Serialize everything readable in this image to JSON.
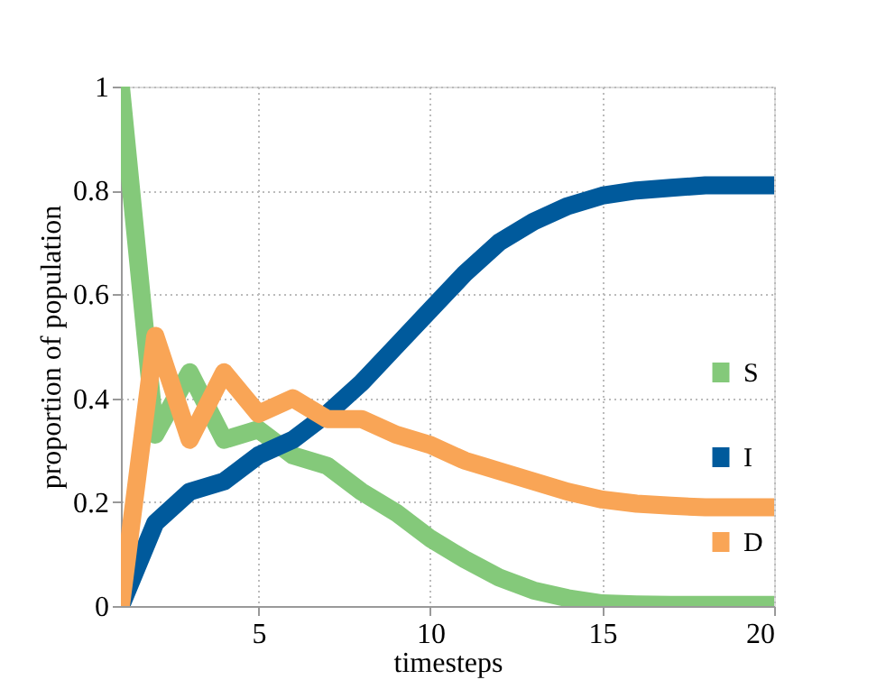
{
  "chart_data": {
    "type": "line",
    "xlabel": "timesteps",
    "ylabel": "proportion of population",
    "x": [
      1,
      2,
      3,
      4,
      5,
      6,
      7,
      8,
      9,
      10,
      11,
      12,
      13,
      14,
      15,
      16,
      17,
      18,
      19,
      20
    ],
    "series": [
      {
        "name": "S",
        "color": "#84c97a",
        "values": [
          1,
          0.33,
          0.45,
          0.32,
          0.34,
          0.29,
          0.27,
          0.22,
          0.18,
          0.13,
          0.09,
          0.055,
          0.03,
          0.015,
          0.005,
          0.003,
          0.002,
          0.002,
          0.002,
          0.002
        ]
      },
      {
        "name": "I",
        "color": "#005a9c",
        "values": [
          0,
          0.16,
          0.22,
          0.24,
          0.29,
          0.32,
          0.37,
          0.43,
          0.5,
          0.57,
          0.64,
          0.7,
          0.74,
          0.77,
          0.79,
          0.8,
          0.805,
          0.81,
          0.81,
          0.81
        ]
      },
      {
        "name": "D",
        "color": "#f9a556",
        "values": [
          0,
          0.52,
          0.32,
          0.45,
          0.37,
          0.4,
          0.36,
          0.36,
          0.33,
          0.31,
          0.28,
          0.26,
          0.24,
          0.22,
          0.205,
          0.197,
          0.193,
          0.19,
          0.19,
          0.19
        ]
      }
    ],
    "xlim": [
      1,
      20
    ],
    "xticks": [
      5,
      10,
      15,
      20
    ],
    "ylim": [
      0,
      1
    ],
    "yticks": [
      0,
      0.2,
      0.4,
      0.6,
      0.8,
      1
    ],
    "grid": true,
    "legend": "right",
    "marker": "none",
    "line_style": "solid"
  }
}
